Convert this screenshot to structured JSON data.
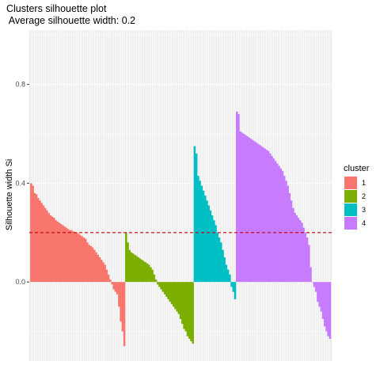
{
  "chart_data": {
    "type": "bar",
    "title": "Clusters silhouette plot",
    "subtitle": " Average silhouette width: 0.2",
    "xlabel": "",
    "ylabel": "Silhouette width Si",
    "ylim": [
      -0.32,
      1.02
    ],
    "yticks": [
      0.0,
      0.4,
      0.8
    ],
    "ytick_labels": [
      "0.0",
      "0.4",
      "0.8"
    ],
    "reference_line": {
      "value": 0.2,
      "style": "dashed",
      "color": "#CC0000"
    },
    "grid": true,
    "legend": {
      "title": "cluster",
      "position": "right"
    },
    "series": [
      {
        "name": "1",
        "color": "#F8766D",
        "values": [
          0.4,
          0.39,
          0.36,
          0.355,
          0.34,
          0.33,
          0.32,
          0.31,
          0.3,
          0.29,
          0.28,
          0.27,
          0.265,
          0.26,
          0.25,
          0.245,
          0.24,
          0.235,
          0.23,
          0.225,
          0.22,
          0.215,
          0.21,
          0.21,
          0.205,
          0.2,
          0.2,
          0.195,
          0.19,
          0.185,
          0.18,
          0.175,
          0.16,
          0.15,
          0.145,
          0.14,
          0.13,
          0.12,
          0.11,
          0.1,
          0.09,
          0.08,
          0.07,
          0.05,
          0.03,
          0.01,
          -0.01,
          -0.03,
          -0.04,
          -0.05,
          -0.1,
          -0.16,
          -0.2,
          -0.26
        ]
      },
      {
        "name": "2",
        "color": "#7CAE00",
        "values": [
          0.2,
          0.16,
          0.13,
          0.12,
          0.115,
          0.11,
          0.105,
          0.1,
          0.095,
          0.09,
          0.085,
          0.08,
          0.075,
          0.07,
          0.06,
          0.05,
          0.03,
          0.01,
          -0.01,
          -0.02,
          -0.03,
          -0.04,
          -0.05,
          -0.06,
          -0.07,
          -0.08,
          -0.09,
          -0.1,
          -0.11,
          -0.12,
          -0.13,
          -0.15,
          -0.17,
          -0.19,
          -0.2,
          -0.22,
          -0.23,
          -0.24,
          -0.25
        ]
      },
      {
        "name": "3",
        "color": "#00BFC4",
        "values": [
          0.55,
          0.52,
          0.43,
          0.41,
          0.39,
          0.37,
          0.35,
          0.33,
          0.31,
          0.29,
          0.27,
          0.25,
          0.23,
          0.2,
          0.18,
          0.16,
          0.13,
          0.1,
          0.07,
          0.05,
          0.03,
          -0.02,
          -0.04,
          -0.07
        ]
      },
      {
        "name": "4",
        "color": "#C77CFF",
        "values": [
          0.69,
          0.68,
          0.61,
          0.605,
          0.6,
          0.595,
          0.59,
          0.585,
          0.58,
          0.575,
          0.57,
          0.565,
          0.56,
          0.555,
          0.55,
          0.545,
          0.54,
          0.535,
          0.53,
          0.52,
          0.51,
          0.5,
          0.49,
          0.48,
          0.47,
          0.46,
          0.45,
          0.43,
          0.41,
          0.39,
          0.36,
          0.33,
          0.3,
          0.28,
          0.27,
          0.26,
          0.25,
          0.24,
          0.22,
          0.2,
          0.18,
          0.15,
          0.06,
          0.0,
          -0.02,
          -0.04,
          -0.08,
          -0.1,
          -0.12,
          -0.15,
          -0.18,
          -0.2,
          -0.22,
          -0.23
        ]
      }
    ]
  }
}
